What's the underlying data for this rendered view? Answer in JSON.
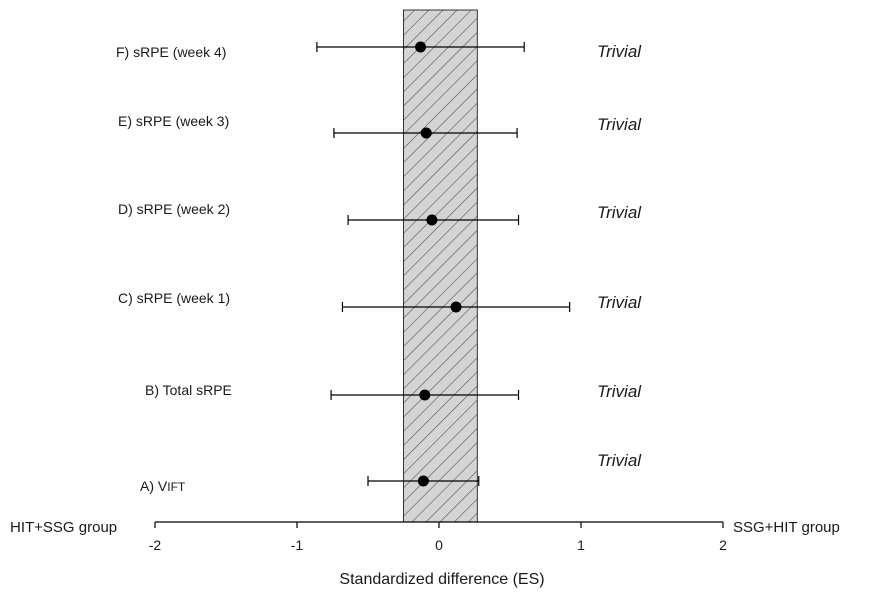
{
  "chart_data": {
    "type": "forest",
    "title": "",
    "xlabel": "Standardized difference (ES)",
    "xlim": [
      -2,
      2
    ],
    "x_ticks": [
      -2,
      -1,
      0,
      1,
      2
    ],
    "x_tick_labels": [
      "-2",
      "-1",
      "0",
      "1",
      "2"
    ],
    "left_group_label": "HIT+SSG group",
    "right_group_label": "SSG+HIT group",
    "trivial_band": [
      -0.25,
      0.27
    ],
    "colors": {
      "band_fill": "#d4d4d4",
      "hatch": "#555555",
      "marker": "#000000",
      "axis": "#000000"
    },
    "rows": [
      {
        "label": "F) sRPE (week 4)",
        "es": -0.13,
        "ci_low": -0.86,
        "ci_high": 0.6,
        "magnitude": "Trivial"
      },
      {
        "label": "E) sRPE (week 3)",
        "es": -0.09,
        "ci_low": -0.74,
        "ci_high": 0.55,
        "magnitude": "Trivial"
      },
      {
        "label": "D) sRPE (week 2)",
        "es": -0.05,
        "ci_low": -0.64,
        "ci_high": 0.56,
        "magnitude": "Trivial"
      },
      {
        "label": "C) sRPE (week 1)",
        "es": 0.12,
        "ci_low": -0.68,
        "ci_high": 0.92,
        "magnitude": "Trivial"
      },
      {
        "label": "B) Total sRPE",
        "es": -0.1,
        "ci_low": -0.76,
        "ci_high": 0.56,
        "magnitude": "Trivial"
      },
      {
        "label_prefix": "A) V",
        "label_sub": "IFT",
        "es": -0.11,
        "ci_low": -0.5,
        "ci_high": 0.28,
        "magnitude": "Trivial"
      }
    ]
  }
}
